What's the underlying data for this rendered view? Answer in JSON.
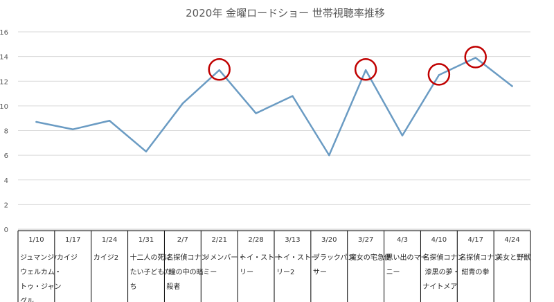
{
  "chart_data": {
    "type": "line",
    "title": "2020年 金曜ロードショー 世帯視聴率推移",
    "xlabel": "",
    "ylabel": "",
    "ylim": [
      0,
      16
    ],
    "yticks": [
      "0",
      "2",
      "4",
      "6",
      "8",
      "10",
      "12",
      "14",
      "16"
    ],
    "grid": true,
    "legend": "none",
    "categories": [
      {
        "date": "1/10",
        "name": "ジュマンジ/ウェルカム・トゥ・ジャングル"
      },
      {
        "date": "1/17",
        "name": "カイジ"
      },
      {
        "date": "1/24",
        "name": "カイジ2"
      },
      {
        "date": "1/31",
        "name": "十二人の死にたい子どもたち"
      },
      {
        "date": "2/7",
        "name": "名探偵コナン 瞳の中の暗殺者"
      },
      {
        "date": "2/21",
        "name": "リメンバー・ミー"
      },
      {
        "date": "2/28",
        "name": "トイ・ストーリー"
      },
      {
        "date": "3/13",
        "name": "トイ・ストーリー2"
      },
      {
        "date": "3/20",
        "name": "ブラックパンサー"
      },
      {
        "date": "3/27",
        "name": "魔女の宅急便"
      },
      {
        "date": "4/3",
        "name": "思い出のマーニー"
      },
      {
        "date": "4/10",
        "name": "名探偵コナン 漆黒の夢・ナイトメア"
      },
      {
        "date": "4/17",
        "name": "名探偵コナン 紺青の拳"
      },
      {
        "date": "4/24",
        "name": "美女と野獣"
      }
    ],
    "series": [
      {
        "values": [
          8.7,
          8.1,
          8.8,
          6.3,
          10.2,
          12.9,
          9.4,
          10.8,
          6.0,
          12.9,
          7.6,
          12.5,
          13.9,
          11.6
        ]
      }
    ],
    "highlighted_indices": [
      5,
      9,
      11,
      12
    ],
    "colors": {
      "line": "#6a9bc3",
      "circle": "#c00000",
      "grid": "#d9d9d9",
      "axis": "#bfbfbf",
      "table_border": "#000000"
    }
  }
}
